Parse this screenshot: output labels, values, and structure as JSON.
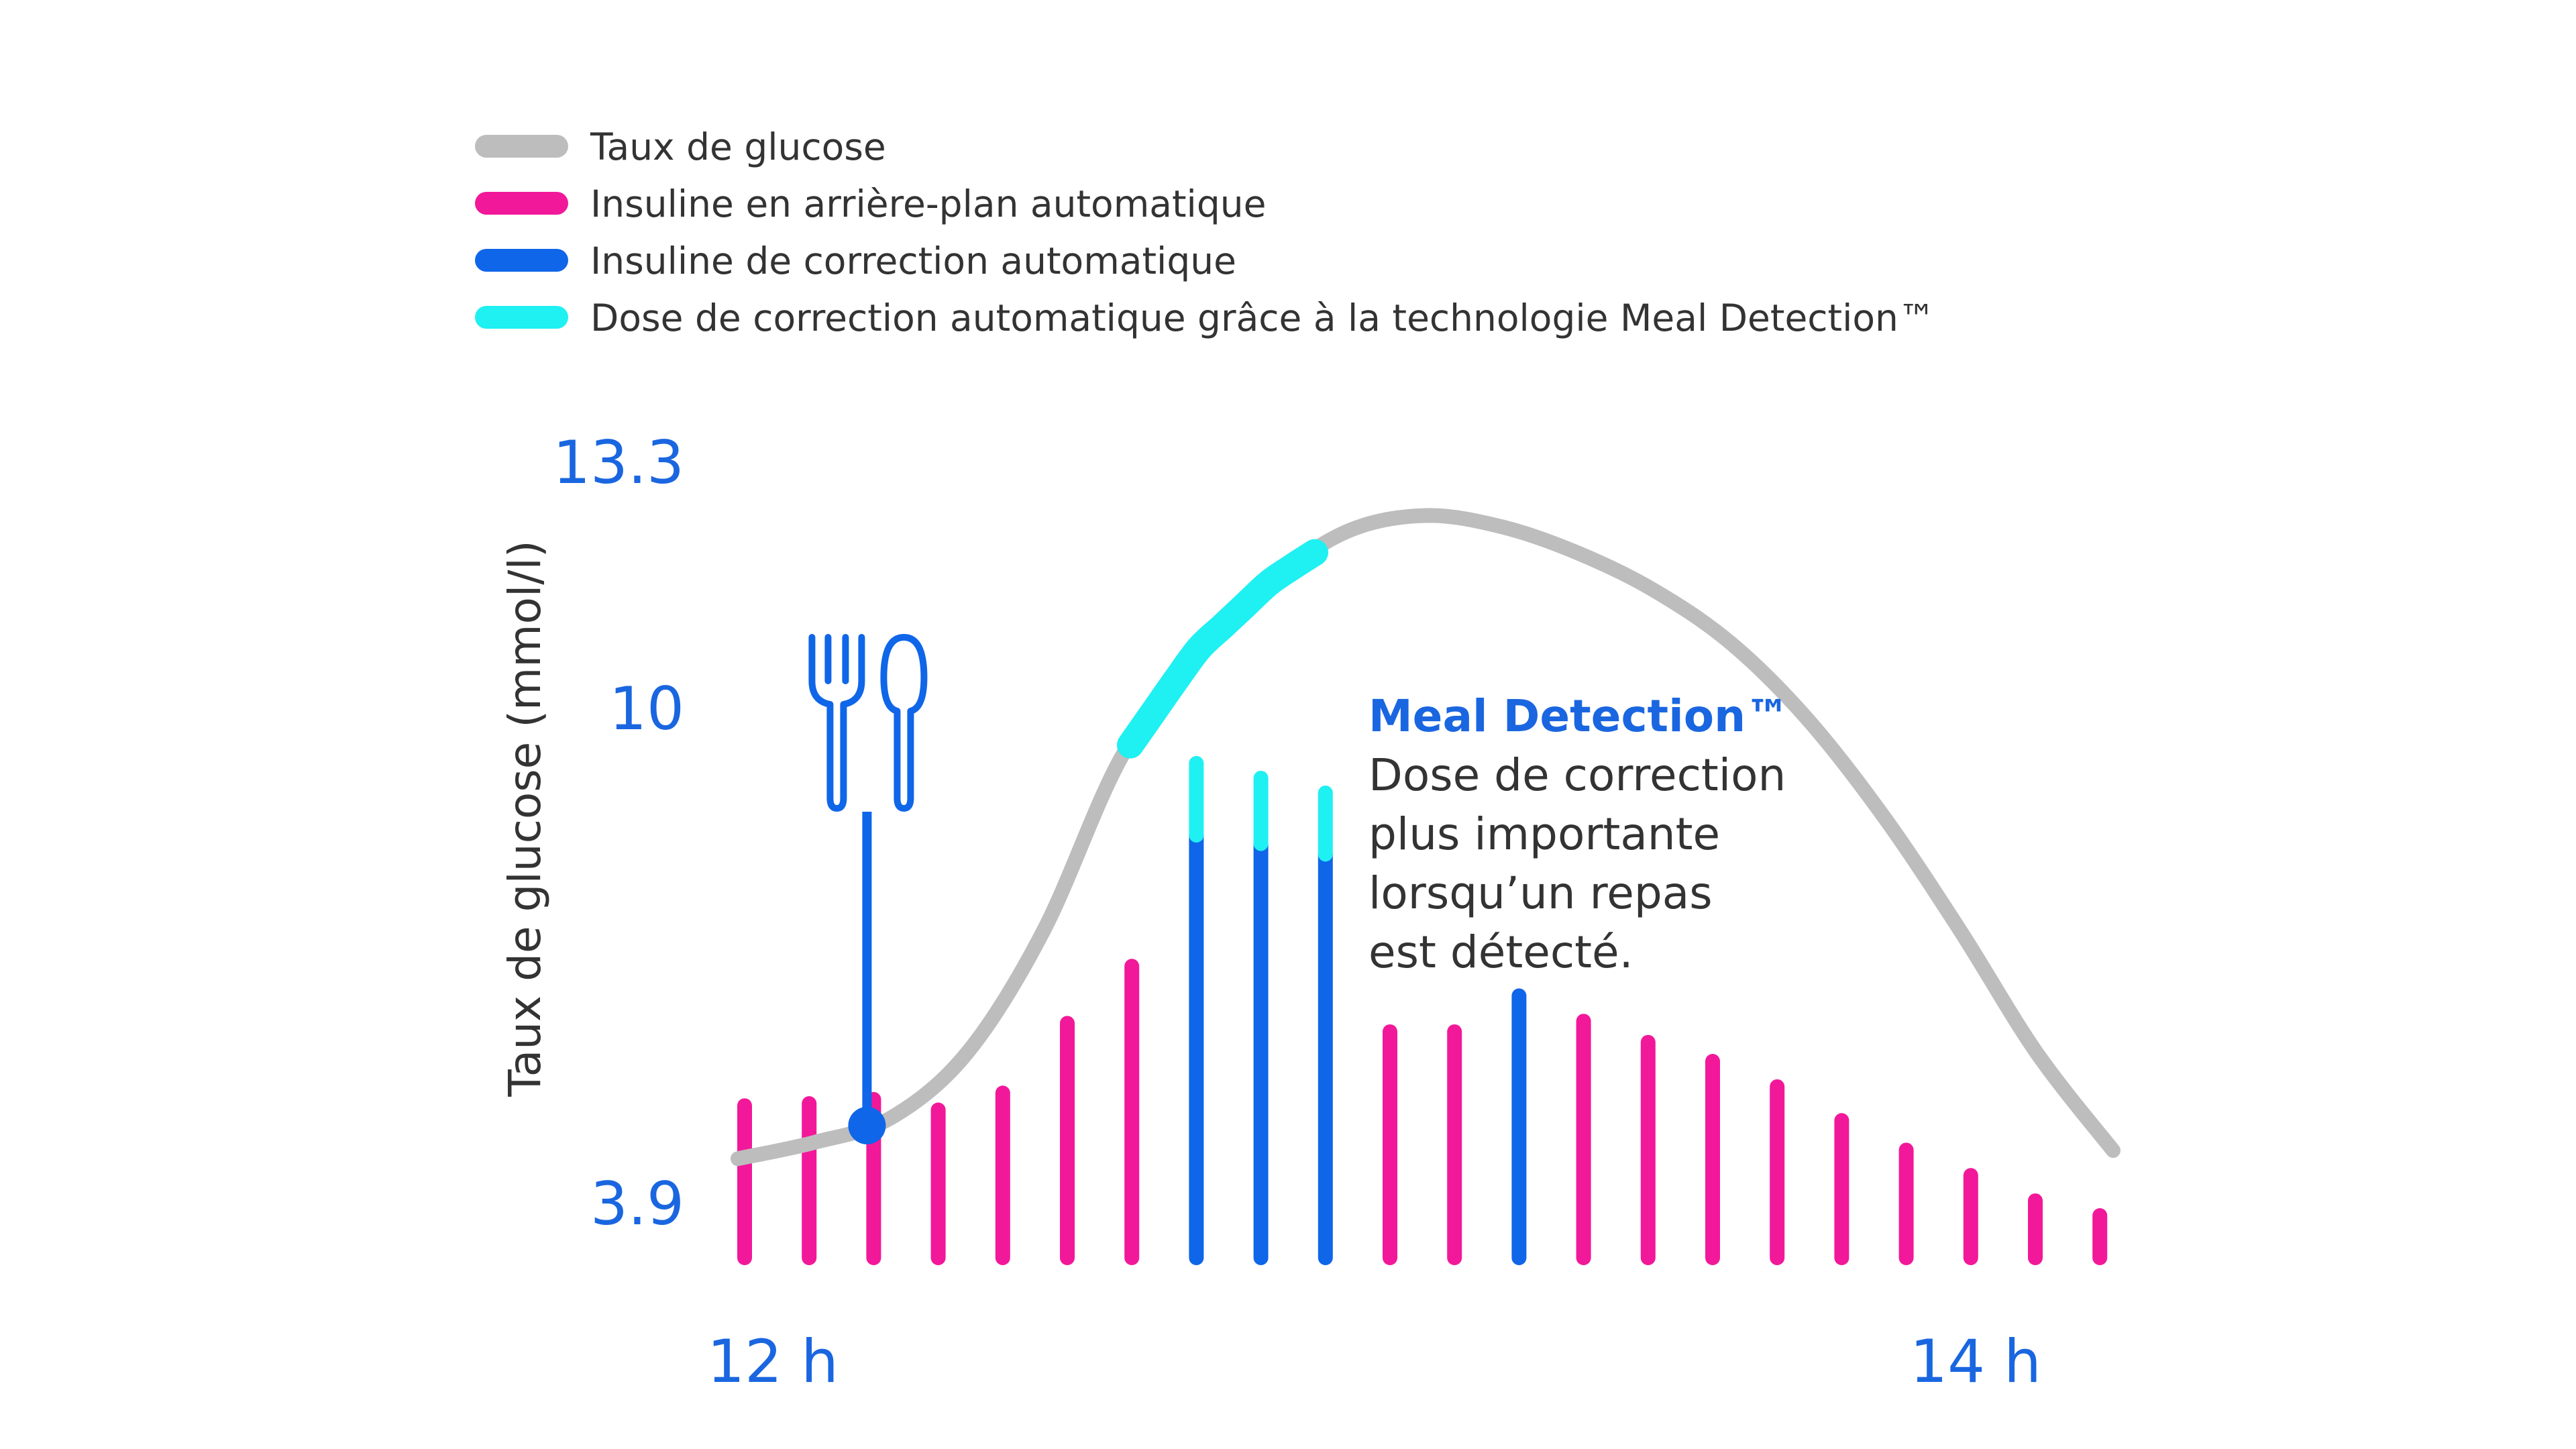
{
  "chart_data": {
    "type": "bar",
    "ylabel": "Taux de glucose (mmol/l)",
    "yticks": [
      "13.3",
      "10",
      "3.9"
    ],
    "xticks": [
      "12 h",
      "14 h"
    ],
    "legend": [
      {
        "label": "Taux de glucose",
        "color": "#bdbdbd"
      },
      {
        "label": "Insuline en arrière-plan automatique",
        "color": "#f2189a"
      },
      {
        "label": "Insuline de correction automatique",
        "color": "#0f66e8"
      },
      {
        "label": "Dose de correction automatique grâce à la technologie Meal Detection™",
        "color": "#1ff0f2"
      }
    ],
    "legend_position": "top",
    "annotation": {
      "title": "Meal Detection™",
      "lines": [
        "Dose de correction",
        "plus importante",
        "lorsqu’un repas",
        "est détecté."
      ]
    },
    "meal_marker_icon": "fork-spoon-icon",
    "meal_index": 2,
    "bars": [
      {
        "type": "basal",
        "value": 0.36
      },
      {
        "type": "basal",
        "value": 0.365
      },
      {
        "type": "basal",
        "value": 0.375
      },
      {
        "type": "basal",
        "value": 0.35
      },
      {
        "type": "basal",
        "value": 0.39
      },
      {
        "type": "basal",
        "value": 0.555
      },
      {
        "type": "basal",
        "value": 0.69
      },
      {
        "type": "correction",
        "value": 1.0,
        "meal_extra": 0.17
      },
      {
        "type": "correction",
        "value": 0.98,
        "meal_extra": 0.155
      },
      {
        "type": "correction",
        "value": 0.955,
        "meal_extra": 0.145
      },
      {
        "type": "basal",
        "value": 0.535
      },
      {
        "type": "basal",
        "value": 0.535
      },
      {
        "type": "correction",
        "value": 0.62
      },
      {
        "type": "basal",
        "value": 0.56
      },
      {
        "type": "basal",
        "value": 0.51
      },
      {
        "type": "basal",
        "value": 0.465
      },
      {
        "type": "basal",
        "value": 0.405
      },
      {
        "type": "basal",
        "value": 0.325
      },
      {
        "type": "basal",
        "value": 0.255
      },
      {
        "type": "basal",
        "value": 0.195
      },
      {
        "type": "basal",
        "value": 0.135
      },
      {
        "type": "basal",
        "value": 0.1
      }
    ],
    "glucose_curve": [
      {
        "bar": 0,
        "value": 4.5
      },
      {
        "bar": 1,
        "value": 4.7
      },
      {
        "bar": 2,
        "value": 5.0
      },
      {
        "bar": 3,
        "value": 5.8
      },
      {
        "bar": 4,
        "value": 7.3
      },
      {
        "bar": 5,
        "value": 9.4
      },
      {
        "bar": 6,
        "value": 10.8
      },
      {
        "bar": 7,
        "value": 11.75
      },
      {
        "bar": 8,
        "value": 12.4
      },
      {
        "bar": 9,
        "value": 12.6
      },
      {
        "bar": 10,
        "value": 12.45
      },
      {
        "bar": 11,
        "value": 12.1
      },
      {
        "bar": 12,
        "value": 11.6
      },
      {
        "bar": 13,
        "value": 10.9
      },
      {
        "bar": 14,
        "value": 9.9
      },
      {
        "bar": 15,
        "value": 8.7
      },
      {
        "bar": 16,
        "value": 7.3
      },
      {
        "bar": 17,
        "value": 5.8
      },
      {
        "bar": 18,
        "value": 4.6
      }
    ],
    "meal_detection_segment": {
      "from_bar": 6.5,
      "to_bar": 9.2
    }
  }
}
